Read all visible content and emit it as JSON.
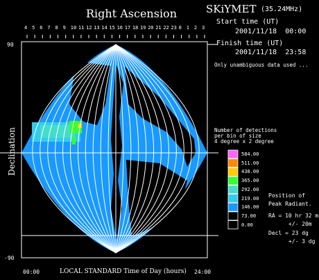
{
  "header": {
    "title": "Right Ascension",
    "brand": "SKiYMET",
    "frequency": "(35.24MHz)",
    "start_label": "Start time (UT)",
    "start_value": "2001/11/18  00:00",
    "finish_label": "Finish time (UT)",
    "finish_value": "2001/11/18  23:58",
    "note": "Only unambiguous data used ..."
  },
  "axes": {
    "ylabel": "Declination",
    "y_top": "90",
    "y_bottom": "-90",
    "xlabel": "LOCAL STANDARD Time of Day (hours)",
    "x_left": "00:00",
    "x_right": "24:00",
    "ra_ticks": [
      "4",
      "5",
      "6",
      "7",
      "8",
      "9",
      "10",
      "11",
      "12",
      "13",
      "14",
      "15",
      "16",
      "17",
      "18",
      "19",
      "20",
      "21",
      "22",
      "23",
      "0",
      "1",
      "2",
      "3"
    ]
  },
  "legend": {
    "caption": "Number of detections\nper bin of size\n4 degree x 2 degree",
    "entries": [
      {
        "label": "584.00",
        "color": "#ff66ff"
      },
      {
        "label": "511.00",
        "color": "#ff8800"
      },
      {
        "label": "438.00",
        "color": "#ffcc00"
      },
      {
        "label": "365.00",
        "color": "#33ff33"
      },
      {
        "label": "292.00",
        "color": "#44ddcc"
      },
      {
        "label": "219.00",
        "color": "#33ccee"
      },
      {
        "label": "146.00",
        "color": "#1a99ff"
      },
      {
        "label": "73.00",
        "color": "#000000"
      },
      {
        "label": "0.00",
        "color": "#000000"
      }
    ]
  },
  "peak": {
    "title": "Position of\nPeak Radiant.",
    "ra": "RA = 10 hr 32 m\n      +/- 20m",
    "dec": "Decl = 23 dg\n      +/- 3 dg"
  },
  "chart_data": {
    "type": "heatmap",
    "title": "Right Ascension",
    "xlabel": "LOCAL STANDARD Time of Day (hours)",
    "ylabel": "Declination",
    "ylim": [
      -90,
      90
    ],
    "bin_size": "4 degree x 2 degree",
    "color_scale": [
      0,
      73,
      146,
      219,
      292,
      365,
      438,
      511,
      584
    ],
    "peak_radiant": {
      "ra_hours": 10.53,
      "ra_err_min": 20,
      "dec_deg": 23,
      "dec_err_deg": 3
    }
  }
}
